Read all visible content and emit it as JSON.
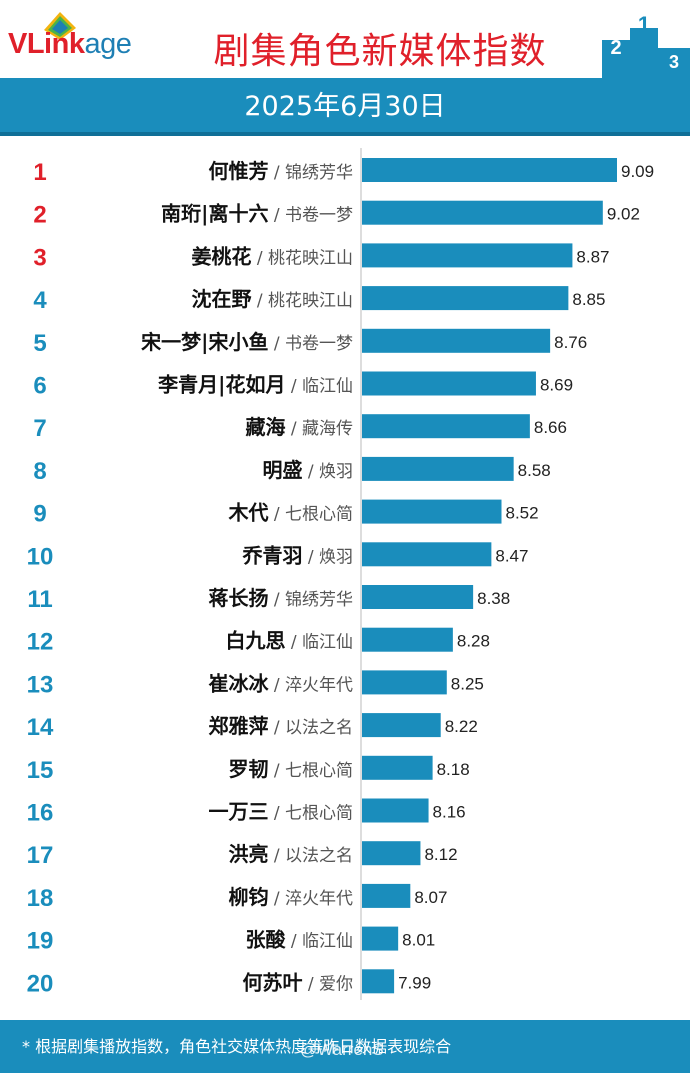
{
  "header": {
    "logo_text_a": "VLink",
    "logo_text_b": "age",
    "title": "剧集角色新媒体指数",
    "podium_labels": [
      "2",
      "1",
      "3"
    ]
  },
  "date": "2025年6月30日",
  "colors": {
    "bar": "#1a8dbc",
    "rank_top3": "#e0202a",
    "rank_other": "#1a8dbc",
    "band": "#1a8dbc",
    "title": "#e0202a"
  },
  "chart_data": {
    "type": "bar",
    "orientation": "horizontal",
    "ranks": [
      "1",
      "2",
      "3",
      "4",
      "5",
      "6",
      "7",
      "8",
      "9",
      "10",
      "11",
      "12",
      "13",
      "14",
      "15",
      "16",
      "17",
      "18",
      "19",
      "20"
    ],
    "characters": [
      "何惟芳",
      "南珩|离十六",
      "姜桃花",
      "沈在野",
      "宋一梦|宋小鱼",
      "李青月|花如月",
      "藏海",
      "明盛",
      "木代",
      "乔青羽",
      "蒋长扬",
      "白九思",
      "崔冰冰",
      "郑雅萍",
      "罗韧",
      "一万三",
      "洪亮",
      "柳钧",
      "张酸",
      "何苏叶"
    ],
    "dramas": [
      "锦绣芳华",
      "书卷一梦",
      "桃花映江山",
      "桃花映江山",
      "书卷一梦",
      "临江仙",
      "藏海传",
      "焕羽",
      "七根心简",
      "焕羽",
      "锦绣芳华",
      "临江仙",
      "淬火年代",
      "以法之名",
      "七根心简",
      "七根心简",
      "以法之名",
      "淬火年代",
      "临江仙",
      "爱你"
    ],
    "separator": " / ",
    "values": [
      9.09,
      9.02,
      8.87,
      8.85,
      8.76,
      8.69,
      8.66,
      8.58,
      8.52,
      8.47,
      8.38,
      8.28,
      8.25,
      8.22,
      8.18,
      8.16,
      8.12,
      8.07,
      8.01,
      7.99
    ],
    "value_labels": [
      "9.09",
      "9.02",
      "8.87",
      "8.85",
      "8.76",
      "8.69",
      "8.66",
      "8.58",
      "8.52",
      "8.47",
      "8.38",
      "8.28",
      "8.25",
      "8.22",
      "8.18",
      "8.16",
      "8.12",
      "8.07",
      "8.01",
      "7.99"
    ]
  },
  "footer": {
    "note": "* 根据剧集播放指数，角色社交媒体热度等昨日数据表现综合"
  },
  "watermark": "@WarrenS"
}
